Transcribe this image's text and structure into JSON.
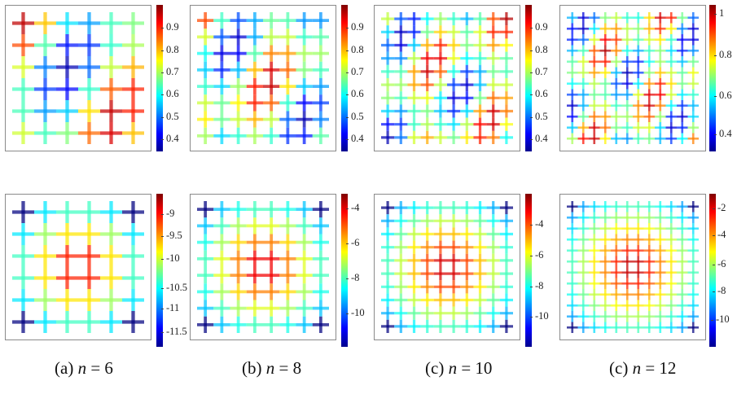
{
  "panels": [
    {
      "n": 6,
      "top_ticks": [
        "0.9",
        "0.8",
        "0.7",
        "0.6",
        "0.5",
        "0.4"
      ],
      "bottom_ticks": [
        "-9",
        "-9.5",
        "-10",
        "-10.5",
        "-11",
        "-11.5"
      ],
      "caption_prefix": "(a)",
      "caption_var": "n",
      "caption_eq": " = 6"
    },
    {
      "n": 8,
      "top_ticks": [
        "0.9",
        "0.8",
        "0.7",
        "0.6",
        "0.5",
        "0.4"
      ],
      "bottom_ticks": [
        "-4",
        "-6",
        "-8",
        "-10"
      ],
      "caption_prefix": "(b)",
      "caption_var": "n",
      "caption_eq": " = 8"
    },
    {
      "n": 10,
      "top_ticks": [
        "0.9",
        "0.8",
        "0.7",
        "0.6",
        "0.5",
        "0.4"
      ],
      "bottom_ticks": [
        "-4",
        "-6",
        "-8",
        "-10"
      ],
      "caption_prefix": "(c)",
      "caption_var": "n",
      "caption_eq": " = 10"
    },
    {
      "n": 12,
      "top_ticks": [
        "1",
        "0.8",
        "0.6",
        "0.4"
      ],
      "bottom_ticks": [
        "-2",
        "-4",
        "-6",
        "-8",
        "-10"
      ],
      "caption_prefix": "(c)",
      "caption_var": "n",
      "caption_eq": " = 12"
    }
  ]
}
